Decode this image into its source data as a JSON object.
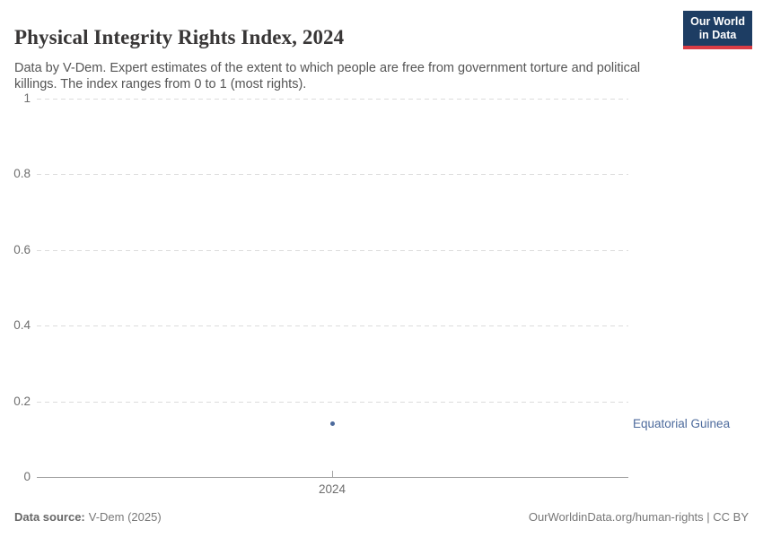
{
  "header": {
    "title": "Physical Integrity Rights Index, 2024",
    "subtitle": "Data by V-Dem. Expert estimates of the extent to which people are free from government torture and political killings. The index ranges from 0 to 1 (most rights).",
    "logo": {
      "line1": "Our World",
      "line2": "in Data"
    }
  },
  "chart_data": {
    "type": "scatter",
    "title": "Physical Integrity Rights Index, 2024",
    "x": [
      2024
    ],
    "x_labels": [
      "2024"
    ],
    "series": [
      {
        "name": "Equatorial Guinea",
        "values": [
          0.14
        ]
      }
    ],
    "xlabel": "",
    "ylabel": "",
    "ylim": [
      0,
      1
    ],
    "yticks": [
      0,
      0.2,
      0.4,
      0.6,
      0.8,
      1
    ],
    "ytick_labels": [
      "0",
      "0.2",
      "0.4",
      "0.6",
      "0.8",
      "1"
    ],
    "grid": "horizontal-dashed",
    "legend_position": "right-of-point",
    "point_color": "#4c6a9c",
    "label_color": "#4c6a9c"
  },
  "colors": {
    "logo_background": "#1d3d63",
    "logo_stripe": "#d93c45",
    "gridline": "#dcdcdc",
    "axis_line": "#a3a3a3",
    "title_text": "#383636",
    "subtitle_text": "#555555",
    "tick_text": "#6e6e6e"
  },
  "footer": {
    "data_source_label": "Data source:",
    "data_source_value": "V-Dem (2025)",
    "attribution": "OurWorldinData.org/human-rights | CC BY"
  }
}
